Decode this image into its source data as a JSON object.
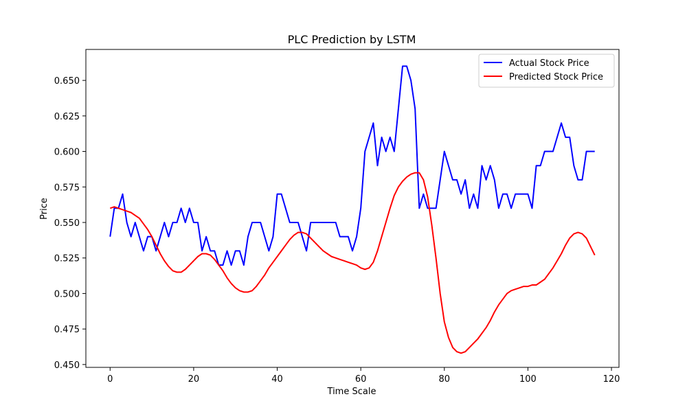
{
  "chart_data": {
    "type": "line",
    "title": "PLC Prediction by LSTM",
    "xlabel": "Time Scale",
    "ylabel": "Price",
    "xlim": [
      -5.8,
      121.8
    ],
    "ylim": [
      0.448,
      0.6718
    ],
    "xticks": [
      0,
      20,
      40,
      60,
      80,
      100,
      120
    ],
    "yticks": [
      0.45,
      0.475,
      0.5,
      0.525,
      0.55,
      0.575,
      0.6,
      0.625,
      0.65
    ],
    "ytick_labels": [
      "0.450",
      "0.475",
      "0.500",
      "0.525",
      "0.550",
      "0.575",
      "0.600",
      "0.625",
      "0.650"
    ],
    "legend_position": "top-right",
    "grid": false,
    "series": [
      {
        "name": "Actual Stock Price",
        "color": "#0000ff",
        "values": [
          0.54,
          0.56,
          0.56,
          0.57,
          0.55,
          0.54,
          0.55,
          0.54,
          0.53,
          0.54,
          0.54,
          0.53,
          0.54,
          0.55,
          0.54,
          0.55,
          0.55,
          0.56,
          0.55,
          0.56,
          0.55,
          0.55,
          0.53,
          0.54,
          0.53,
          0.53,
          0.52,
          0.52,
          0.53,
          0.52,
          0.53,
          0.53,
          0.52,
          0.54,
          0.55,
          0.55,
          0.55,
          0.54,
          0.53,
          0.54,
          0.57,
          0.57,
          0.56,
          0.55,
          0.55,
          0.55,
          0.54,
          0.53,
          0.55,
          0.55,
          0.55,
          0.55,
          0.55,
          0.55,
          0.55,
          0.54,
          0.54,
          0.54,
          0.53,
          0.54,
          0.56,
          0.6,
          0.61,
          0.62,
          0.59,
          0.61,
          0.6,
          0.61,
          0.6,
          0.63,
          0.66,
          0.66,
          0.65,
          0.63,
          0.56,
          0.57,
          0.56,
          0.56,
          0.56,
          0.58,
          0.6,
          0.59,
          0.58,
          0.58,
          0.57,
          0.58,
          0.56,
          0.57,
          0.56,
          0.59,
          0.58,
          0.59,
          0.58,
          0.56,
          0.57,
          0.57,
          0.56,
          0.57,
          0.57,
          0.57,
          0.57,
          0.56,
          0.59,
          0.59,
          0.6,
          0.6,
          0.6,
          0.61,
          0.62,
          0.61,
          0.61,
          0.59,
          0.58,
          0.58,
          0.6,
          0.6,
          0.6
        ]
      },
      {
        "name": "Predicted Stock Price",
        "color": "#ff0000",
        "values": [
          0.56,
          0.561,
          0.56,
          0.559,
          0.558,
          0.557,
          0.555,
          0.553,
          0.549,
          0.545,
          0.54,
          0.534,
          0.528,
          0.523,
          0.519,
          0.516,
          0.515,
          0.515,
          0.517,
          0.52,
          0.523,
          0.526,
          0.528,
          0.528,
          0.527,
          0.524,
          0.52,
          0.516,
          0.511,
          0.507,
          0.504,
          0.502,
          0.501,
          0.501,
          0.502,
          0.505,
          0.509,
          0.513,
          0.518,
          0.522,
          0.526,
          0.53,
          0.534,
          0.538,
          0.541,
          0.543,
          0.543,
          0.542,
          0.539,
          0.536,
          0.533,
          0.53,
          0.528,
          0.526,
          0.525,
          0.524,
          0.523,
          0.522,
          0.521,
          0.52,
          0.518,
          0.517,
          0.518,
          0.522,
          0.53,
          0.54,
          0.55,
          0.56,
          0.569,
          0.575,
          0.579,
          0.582,
          0.584,
          0.585,
          0.585,
          0.58,
          0.568,
          0.548,
          0.525,
          0.5,
          0.48,
          0.469,
          0.462,
          0.459,
          0.458,
          0.459,
          0.462,
          0.465,
          0.468,
          0.472,
          0.476,
          0.481,
          0.487,
          0.492,
          0.496,
          0.5,
          0.502,
          0.503,
          0.504,
          0.505,
          0.505,
          0.506,
          0.506,
          0.508,
          0.51,
          0.514,
          0.518,
          0.523,
          0.528,
          0.534,
          0.539,
          0.542,
          0.543,
          0.542,
          0.539,
          0.533,
          0.527
        ]
      }
    ]
  }
}
